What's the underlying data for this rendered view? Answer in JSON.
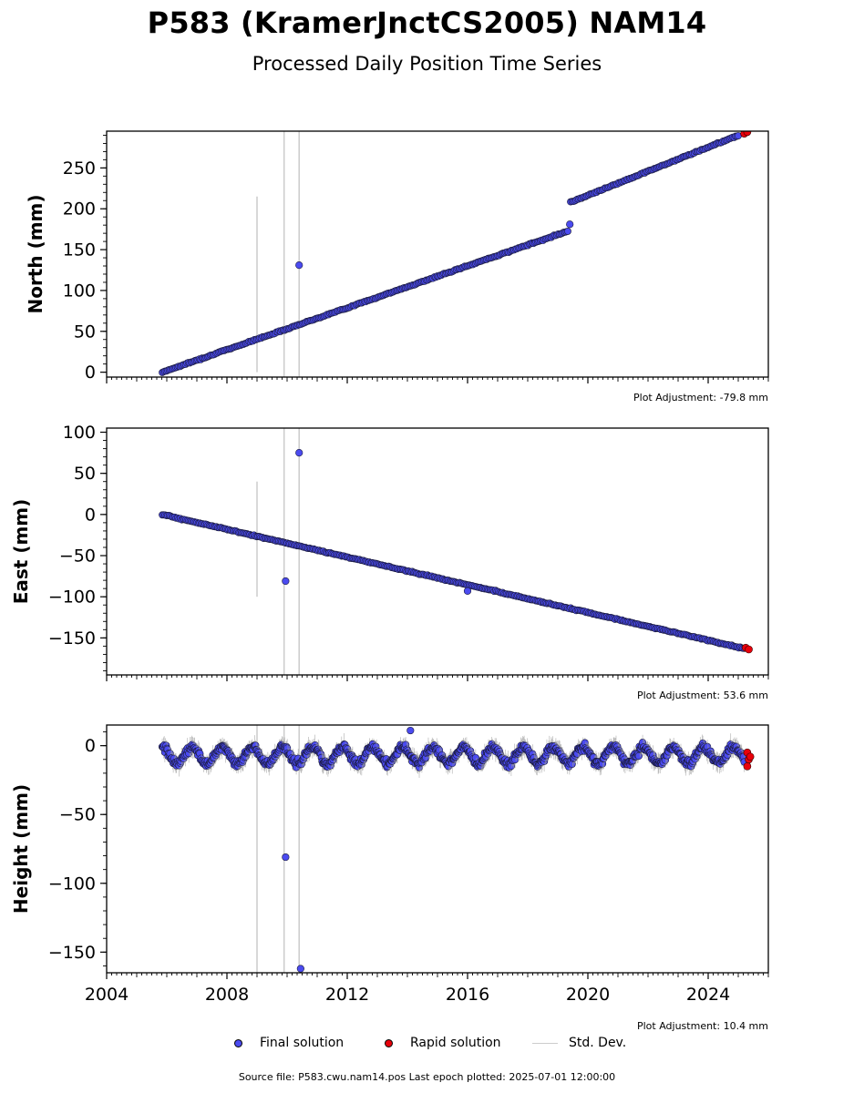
{
  "title": "P583 (KramerJnctCS2005) NAM14",
  "subtitle": "Processed Daily Position Time Series",
  "colors": {
    "final": "#4b4bf0",
    "rapid": "#e8000b",
    "stddev": "#cccccc"
  },
  "chart_data": [
    {
      "type": "scatter",
      "ylabel": "North (mm)",
      "xlim": [
        2004,
        2026
      ],
      "ylim": [
        -6,
        295
      ],
      "yticks": [
        0,
        50,
        100,
        150,
        200,
        250
      ],
      "adjustment": "Plot Adjustment: -79.8 mm",
      "final_series": [
        [
          2005.85,
          0
        ],
        [
          2019.35,
          173
        ],
        [
          2019.42,
          208
        ],
        [
          2025.0,
          290
        ]
      ],
      "rapid_points": [
        [
          2025.2,
          292
        ],
        [
          2025.3,
          294
        ]
      ],
      "outliers": [
        [
          2010.4,
          131
        ],
        [
          2019.4,
          181
        ]
      ],
      "stddev_bars": [
        [
          2009.0,
          0,
          215
        ],
        [
          2009.9,
          -6,
          295
        ],
        [
          2010.4,
          -6,
          295
        ]
      ]
    },
    {
      "type": "scatter",
      "ylabel": "East (mm)",
      "xlim": [
        2004,
        2026
      ],
      "ylim": [
        -195,
        105
      ],
      "yticks": [
        -150,
        -100,
        -50,
        0,
        50,
        100
      ],
      "adjustment": "Plot Adjustment: 53.6 mm",
      "final_series": [
        [
          2005.85,
          0
        ],
        [
          2025.2,
          -163
        ]
      ],
      "rapid_points": [
        [
          2025.25,
          -162
        ],
        [
          2025.35,
          -164
        ]
      ],
      "outliers": [
        [
          2010.4,
          75
        ],
        [
          2009.95,
          -81
        ],
        [
          2016.0,
          -93
        ]
      ],
      "stddev_bars": [
        [
          2009.0,
          -100,
          40
        ],
        [
          2009.9,
          -195,
          105
        ],
        [
          2010.4,
          -195,
          105
        ]
      ]
    },
    {
      "type": "scatter",
      "ylabel": "Height (mm)",
      "xlabel": "",
      "xlim": [
        2004,
        2026
      ],
      "ylim": [
        -165,
        15
      ],
      "yticks": [
        -150,
        -100,
        -50,
        0
      ],
      "xticks": [
        2004,
        2008,
        2012,
        2016,
        2020,
        2024
      ],
      "adjustment": "Plot Adjustment: 10.4 mm",
      "final_range": [
        2005.85,
        2025.2
      ],
      "final_mean": -7,
      "rapid_points": [
        [
          2025.3,
          -5
        ],
        [
          2025.35,
          -10
        ],
        [
          2025.3,
          -15
        ],
        [
          2025.4,
          -8
        ]
      ],
      "outliers": [
        [
          2009.95,
          -81
        ],
        [
          2010.45,
          -162
        ],
        [
          2014.1,
          11
        ]
      ],
      "stddev_bars": [
        [
          2009.0,
          -165,
          15
        ],
        [
          2009.9,
          -165,
          15
        ],
        [
          2010.4,
          -165,
          15
        ]
      ]
    }
  ],
  "legend": {
    "final": "Final solution",
    "rapid": "Rapid solution",
    "stddev": "Std. Dev."
  },
  "footer": "Source file: P583.cwu.nam14.pos  Last epoch plotted: 2025-07-01 12:00:00"
}
